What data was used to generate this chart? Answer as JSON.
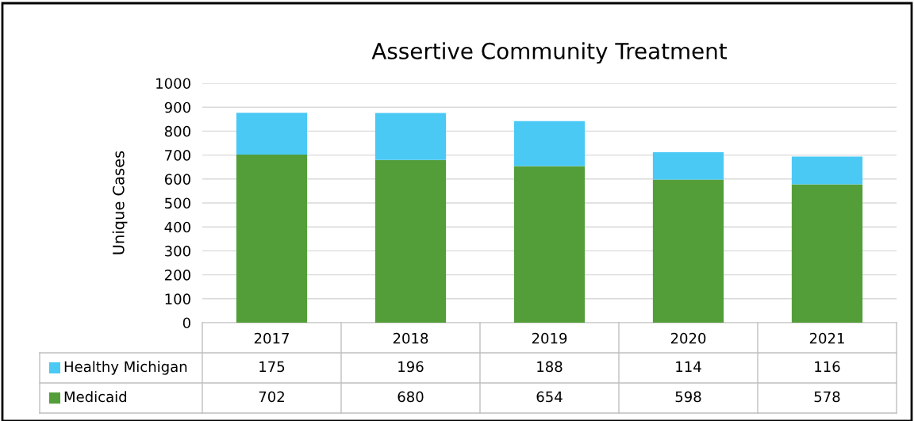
{
  "chart_data": {
    "type": "bar",
    "title": "Assertive Community Treatment",
    "ylabel": "Unique Cases",
    "categories": [
      "2017",
      "2018",
      "2019",
      "2020",
      "2021"
    ],
    "stacked": true,
    "series": [
      {
        "name": "Medicaid",
        "color": "#549e39",
        "values": [
          702,
          680,
          654,
          598,
          578
        ]
      },
      {
        "name": "Healthy Michigan",
        "color": "#4ac9f5",
        "values": [
          175,
          196,
          188,
          114,
          116
        ]
      }
    ],
    "ylim": [
      0,
      1000
    ],
    "yticks": [
      0,
      100,
      200,
      300,
      400,
      500,
      600,
      700,
      800,
      900,
      1000
    ],
    "grid": "y",
    "legend": "bottom",
    "data_labels": true
  }
}
